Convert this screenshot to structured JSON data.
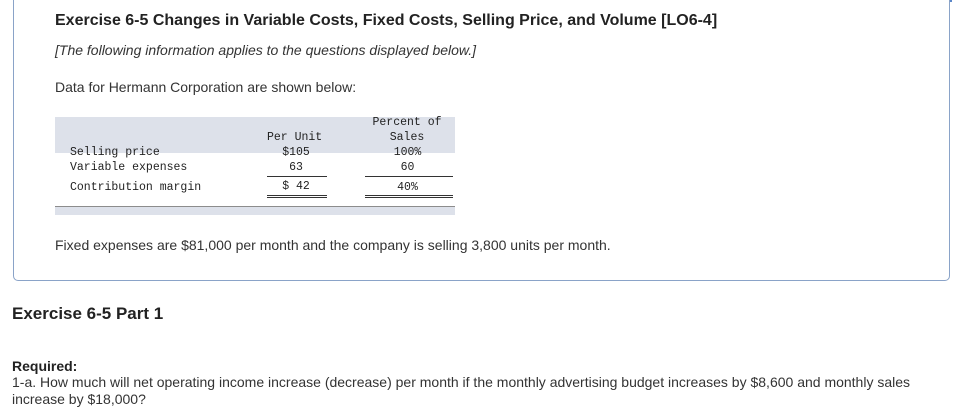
{
  "exercise": {
    "title": "Exercise 6-5 Changes in Variable Costs, Fixed Costs, Selling Price, and Volume [LO6-4]",
    "note": "[The following information applies to the questions displayed below.]",
    "intro": "Data for Hermann Corporation are shown below:"
  },
  "table": {
    "headers": {
      "per_unit": "Per Unit",
      "percent_line1": "Percent of",
      "percent_line2": "Sales"
    },
    "rows": [
      {
        "label": "Selling price",
        "per_unit": "$105",
        "percent": "100%"
      },
      {
        "label": "Variable expenses",
        "per_unit": "63",
        "percent": "60"
      },
      {
        "label": "Contribution margin",
        "per_unit": "$ 42",
        "percent": "40%"
      }
    ]
  },
  "fixed_expenses_text": "Fixed expenses are $81,000 per month and the company is selling 3,800 units per month.",
  "part": {
    "title": "Exercise 6-5 Part 1"
  },
  "required": {
    "label": "Required:",
    "text": "1-a. How much will net operating income increase (decrease) per month if the monthly advertising budget increases by $8,600 and monthly sales increase by $18,000?"
  },
  "colors": {
    "card_border": "#8aa3c8",
    "table_band": "#dde1ea",
    "accent": "#5a86c8"
  }
}
